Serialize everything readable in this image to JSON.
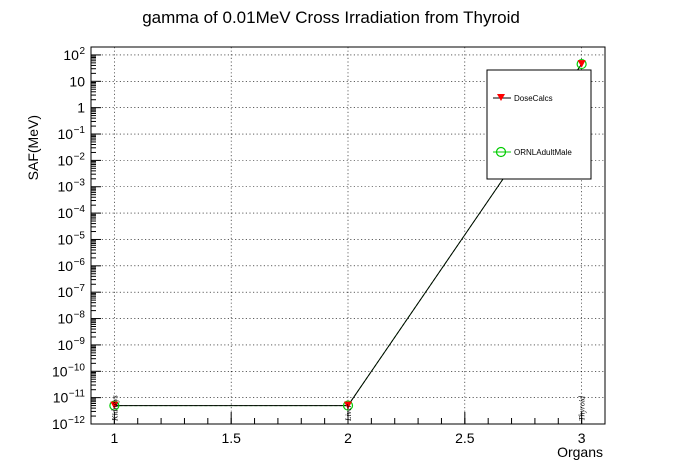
{
  "chart_data": {
    "type": "line",
    "title": "gamma of 0.01MeV Cross Irradiation from Thyroid",
    "xlabel": "Organs",
    "ylabel": "SAF(MeV)",
    "x_ticks": [
      "1",
      "1.5",
      "2",
      "2.5",
      "3"
    ],
    "xlim": [
      0.9,
      3.1
    ],
    "ylim": [
      1e-12,
      200
    ],
    "yscale": "log",
    "y_tick_exponents": [
      -12,
      -11,
      -10,
      -9,
      -8,
      -7,
      -6,
      -5,
      -4,
      -3,
      -2,
      -1,
      0,
      1,
      2
    ],
    "y_tick_plain": {
      "0": "1",
      "1": "10"
    },
    "grid": true,
    "categories": [
      "Kidneys",
      "Liver",
      "Thyroid"
    ],
    "x": [
      1,
      2,
      3
    ],
    "series": [
      {
        "name": "DoseCalcs",
        "values": [
          5e-12,
          5e-12,
          45
        ],
        "color": "#ff0000",
        "marker": "triangle-down"
      },
      {
        "name": "ORNLAdultMale",
        "values": [
          5e-12,
          5e-12,
          45
        ],
        "color": "#00cc00",
        "marker": "open-circle"
      }
    ],
    "legend_position": "top-right"
  }
}
